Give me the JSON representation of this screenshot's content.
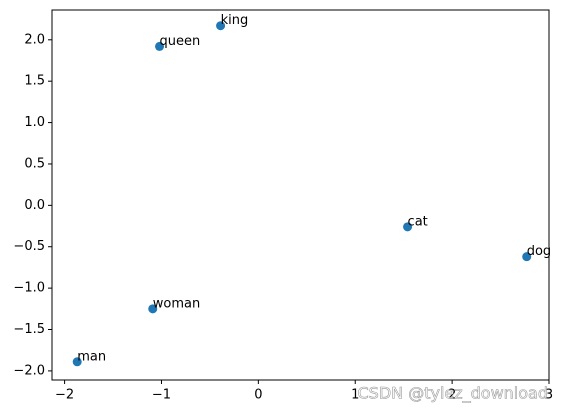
{
  "chart_data": {
    "type": "scatter",
    "color": "#1f77b4",
    "x": [
      -0.39,
      -1.02,
      1.54,
      2.77,
      -1.09,
      -1.87
    ],
    "values": [
      2.17,
      1.92,
      -0.26,
      -0.62,
      -1.25,
      -1.89
    ],
    "point_labels": [
      "king",
      "queen",
      "cat",
      "dog",
      "woman",
      "man"
    ],
    "xlim": [
      -2.13,
      3.0
    ],
    "ylim": [
      -2.11,
      2.36
    ],
    "xticks": [
      {
        "value": -2,
        "label": "−2"
      },
      {
        "value": -1,
        "label": "−1"
      },
      0,
      1,
      2,
      3
    ],
    "yticks": [
      {
        "value": -2.0,
        "label": "−2.0"
      },
      {
        "value": -1.5,
        "label": "−1.5"
      },
      {
        "value": -1.0,
        "label": "−1.0"
      },
      {
        "value": -0.5,
        "label": "−0.5"
      },
      {
        "value": 0.0,
        "label": "0.0"
      },
      {
        "value": 0.5,
        "label": "0.5"
      },
      {
        "value": 1.0,
        "label": "1.0"
      },
      {
        "value": 1.5,
        "label": "1.5"
      },
      {
        "value": 2.0,
        "label": "2.0"
      }
    ],
    "watermark": "CSDN @tylez_download"
  }
}
